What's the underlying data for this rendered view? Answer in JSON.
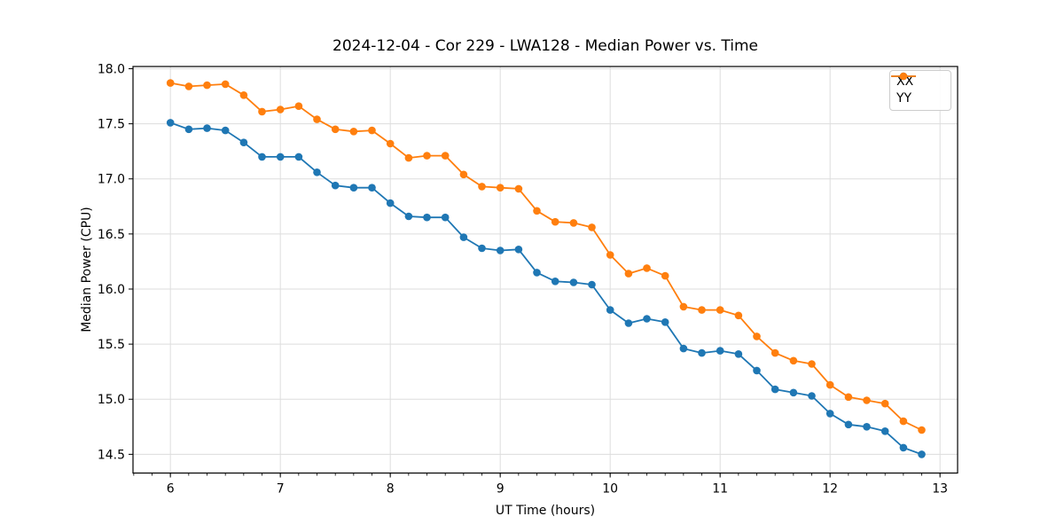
{
  "chart_data": {
    "type": "line",
    "title": "2024-12-04 - Cor 229 - LWA128 - Median Power vs. Time",
    "xlabel": "UT Time (hours)",
    "ylabel": "Median Power (CPU)",
    "x": [
      6.0,
      6.167,
      6.333,
      6.5,
      6.667,
      6.833,
      7.0,
      7.167,
      7.333,
      7.5,
      7.667,
      7.833,
      8.0,
      8.167,
      8.333,
      8.5,
      8.667,
      8.833,
      9.0,
      9.167,
      9.333,
      9.5,
      9.667,
      9.833,
      10.0,
      10.167,
      10.333,
      10.5,
      10.667,
      10.833,
      11.0,
      11.167,
      11.333,
      11.5,
      11.667,
      11.833,
      12.0,
      12.167,
      12.333,
      12.5,
      12.667,
      12.833
    ],
    "series": [
      {
        "name": "XX",
        "color": "#1f77b4",
        "values": [
          17.51,
          17.45,
          17.46,
          17.44,
          17.33,
          17.2,
          17.2,
          17.2,
          17.06,
          16.94,
          16.92,
          16.92,
          16.78,
          16.66,
          16.65,
          16.65,
          16.47,
          16.37,
          16.35,
          16.36,
          16.15,
          16.07,
          16.06,
          16.04,
          15.81,
          15.69,
          15.73,
          15.7,
          15.46,
          15.42,
          15.44,
          15.41,
          15.26,
          15.09,
          15.06,
          15.03,
          14.87,
          14.77,
          14.75,
          14.71,
          14.56,
          14.5
        ]
      },
      {
        "name": "YY",
        "color": "#ff7f0e",
        "values": [
          17.87,
          17.84,
          17.85,
          17.86,
          17.76,
          17.61,
          17.63,
          17.66,
          17.54,
          17.45,
          17.43,
          17.44,
          17.32,
          17.19,
          17.21,
          17.21,
          17.04,
          16.93,
          16.92,
          16.91,
          16.71,
          16.61,
          16.6,
          16.56,
          16.31,
          16.14,
          16.19,
          16.12,
          15.84,
          15.81,
          15.81,
          15.76,
          15.57,
          15.42,
          15.35,
          15.32,
          15.13,
          15.02,
          14.99,
          14.96,
          14.8,
          14.72
        ]
      }
    ],
    "xlim": [
      5.66,
      13.16
    ],
    "ylim": [
      14.33,
      18.02
    ],
    "xticks": [
      6,
      7,
      8,
      9,
      10,
      11,
      12,
      13
    ],
    "yticks": [
      14.5,
      15.0,
      15.5,
      16.0,
      16.5,
      17.0,
      17.5,
      18.0
    ],
    "minor_x_step": 0.16667,
    "grid": true,
    "grid_color": "#dddddd",
    "legend_position": "upper right",
    "marker": "o",
    "line_width": 1.8,
    "marker_radius": 4.3
  }
}
